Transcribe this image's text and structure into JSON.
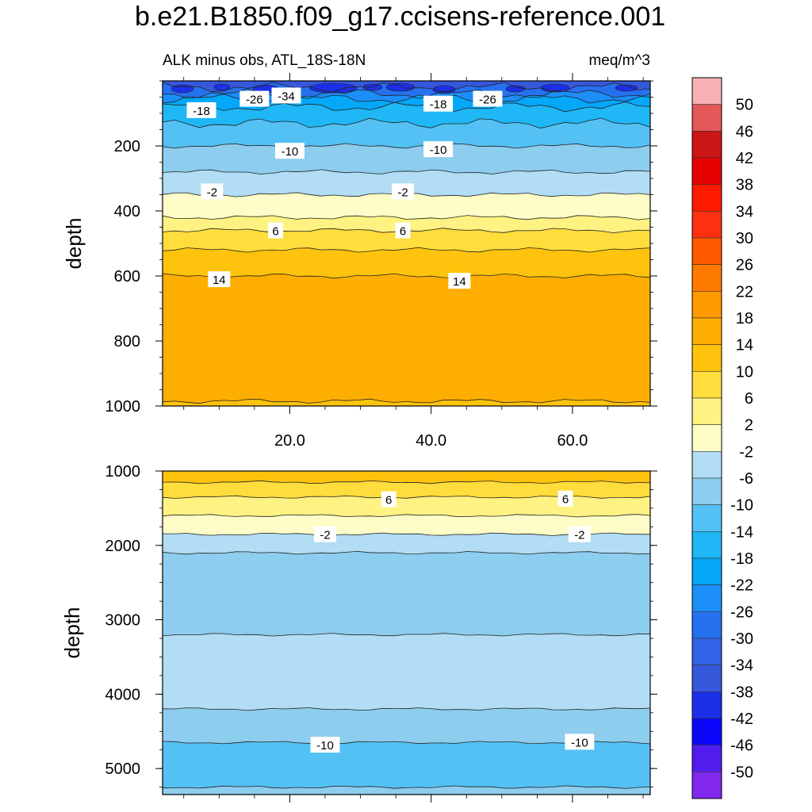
{
  "title": "b.e21.B1850.f09_g17.ccisens-reference.001",
  "chart_data": [
    {
      "type": "contour",
      "panel": "upper",
      "subtitle_left": "ALK minus obs, ATL_18S-18N",
      "subtitle_right": "meq/m^3",
      "ylabel": "depth",
      "xlim": [
        2,
        71
      ],
      "ylim": [
        0,
        1000
      ],
      "y_inverted": true,
      "xticks": [
        20,
        40,
        60
      ],
      "xtick_labels": [
        "20.0",
        "40.0",
        "60.0"
      ],
      "yticks": [
        200,
        400,
        600,
        800,
        1000
      ],
      "ytick_labels": [
        "200",
        "400",
        "600",
        "800",
        "1000"
      ],
      "bands": [
        {
          "top": 0,
          "bottom": 20,
          "level": -38
        },
        {
          "top": 20,
          "bottom": 40,
          "level": -30
        },
        {
          "top": 40,
          "bottom": 55,
          "level": -26
        },
        {
          "top": 55,
          "bottom": 80,
          "level": -22
        },
        {
          "top": 80,
          "bottom": 130,
          "level": -18
        },
        {
          "top": 130,
          "bottom": 200,
          "level": -14
        },
        {
          "top": 200,
          "bottom": 280,
          "level": -10
        },
        {
          "top": 280,
          "bottom": 350,
          "level": -6
        },
        {
          "top": 350,
          "bottom": 420,
          "level": -2
        },
        {
          "top": 420,
          "bottom": 460,
          "level": 2
        },
        {
          "top": 460,
          "bottom": 520,
          "level": 6
        },
        {
          "top": 520,
          "bottom": 600,
          "level": 10
        },
        {
          "top": 600,
          "bottom": 985,
          "level": 14
        },
        {
          "top": 985,
          "bottom": 1000,
          "level": 10
        }
      ],
      "contour_labels": [
        {
          "x": 7.5,
          "depth": 90,
          "text": "-18"
        },
        {
          "x": 15,
          "depth": 55,
          "text": "-26"
        },
        {
          "x": 19.5,
          "depth": 45,
          "text": "-34"
        },
        {
          "x": 41,
          "depth": 70,
          "text": "-18"
        },
        {
          "x": 48,
          "depth": 55,
          "text": "-26"
        },
        {
          "x": 20,
          "depth": 215,
          "text": "-10"
        },
        {
          "x": 41,
          "depth": 210,
          "text": "-10"
        },
        {
          "x": 9,
          "depth": 340,
          "text": "-2"
        },
        {
          "x": 36,
          "depth": 340,
          "text": "-2"
        },
        {
          "x": 18,
          "depth": 460,
          "text": "6"
        },
        {
          "x": 36,
          "depth": 460,
          "text": "6"
        },
        {
          "x": 10,
          "depth": 610,
          "text": "14"
        },
        {
          "x": 44,
          "depth": 615,
          "text": "14"
        }
      ]
    },
    {
      "type": "contour",
      "panel": "lower",
      "ylabel": "depth",
      "xlim": [
        2,
        71
      ],
      "ylim": [
        1000,
        5350
      ],
      "y_inverted": true,
      "yticks": [
        1000,
        2000,
        3000,
        4000,
        5000
      ],
      "ytick_labels": [
        "1000",
        "2000",
        "3000",
        "4000",
        "5000"
      ],
      "bands": [
        {
          "top": 1000,
          "bottom": 1150,
          "level": 10
        },
        {
          "top": 1150,
          "bottom": 1350,
          "level": 6
        },
        {
          "top": 1350,
          "bottom": 1600,
          "level": 2
        },
        {
          "top": 1600,
          "bottom": 1850,
          "level": -2
        },
        {
          "top": 1850,
          "bottom": 2100,
          "level": -6
        },
        {
          "top": 2100,
          "bottom": 3200,
          "level": -10
        },
        {
          "top": 3200,
          "bottom": 4200,
          "level": -6
        },
        {
          "top": 4200,
          "bottom": 4650,
          "level": -10
        },
        {
          "top": 4650,
          "bottom": 5250,
          "level": -14
        },
        {
          "top": 5250,
          "bottom": 5350,
          "level": -10
        }
      ],
      "contour_labels": [
        {
          "x": 34,
          "depth": 1380,
          "text": "6"
        },
        {
          "x": 59,
          "depth": 1370,
          "text": "6"
        },
        {
          "x": 25,
          "depth": 1850,
          "text": "-2"
        },
        {
          "x": 61,
          "depth": 1850,
          "text": "-2"
        },
        {
          "x": 25,
          "depth": 4680,
          "text": "-10"
        },
        {
          "x": 61,
          "depth": 4640,
          "text": "-10"
        }
      ]
    }
  ],
  "colorbar": {
    "labels": [
      "50",
      "46",
      "42",
      "38",
      "34",
      "30",
      "26",
      "22",
      "18",
      "14",
      "10",
      "6",
      "2",
      "-2",
      "-6",
      "-10",
      "-14",
      "-18",
      "-22",
      "-26",
      "-30",
      "-34",
      "-38",
      "-42",
      "-46",
      "-50"
    ],
    "colors": [
      "#f9b2b4",
      "#e4585a",
      "#cc1515",
      "#e60000",
      "#ff1a00",
      "#ff3010",
      "#ff5a00",
      "#ff7b00",
      "#ff9900",
      "#feae00",
      "#fec30d",
      "#fedd3c",
      "#fef282",
      "#fefdc8",
      "#b2ddf4",
      "#8dcdee",
      "#54c1f4",
      "#1fb7f5",
      "#05a7f9",
      "#1b8ef7",
      "#2671f0",
      "#3363e6",
      "#3658db",
      "#1c2fe8",
      "#0a07fa",
      "#501dee",
      "#8227ec"
    ],
    "band_colors": {
      "-38": "#3658db",
      "-30": "#2671f0",
      "-26": "#1b8ef7",
      "-22": "#05a7f9",
      "-18": "#1fb7f5",
      "-14": "#54c1f4",
      "-10": "#8dcdee",
      "-6": "#b2ddf4",
      "-2": "#fefdc8",
      "2": "#fef282",
      "6": "#fedd3c",
      "10": "#fec30d",
      "14": "#feae00"
    }
  }
}
